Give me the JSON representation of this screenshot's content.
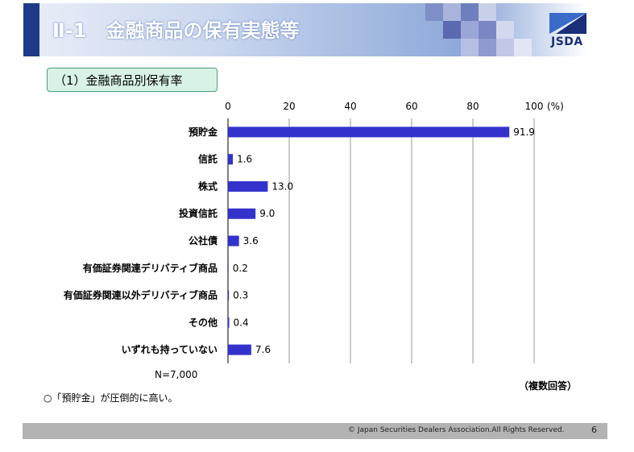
{
  "header": {
    "title": "Ⅱ-1　金融商品の保有実態等",
    "logo_text": "JSDA"
  },
  "section": {
    "label": "（1）金融商品別保有率"
  },
  "chart_data": {
    "type": "bar",
    "orientation": "horizontal",
    "categories": [
      "預貯金",
      "信託",
      "株式",
      "投資信託",
      "公社債",
      "有価証券関連デリバティブ商品",
      "有価証券関連以外デリバティブ商品",
      "その他",
      "いずれも持っていない"
    ],
    "values": [
      91.9,
      1.6,
      13.0,
      9.0,
      3.6,
      0.2,
      0.3,
      0.4,
      7.6
    ],
    "value_labels": [
      "91.9",
      "1.6",
      "13.0",
      "9.0",
      "3.6",
      "0.2",
      "0.3",
      "0.4",
      "7.6"
    ],
    "xlim": [
      0,
      100
    ],
    "xticks": [
      0,
      20,
      40,
      60,
      80,
      100
    ],
    "unit": "(%)",
    "grid": true,
    "bar_color": "#3333cc"
  },
  "sample_size": "N=7,000",
  "multiple_answer": "（複数回答）",
  "note": "○「預貯金」が圧倒的に高い。",
  "footer": {
    "copyright": "© Japan Securities Dealers Association.All Rights Reserved.",
    "page": "6"
  }
}
